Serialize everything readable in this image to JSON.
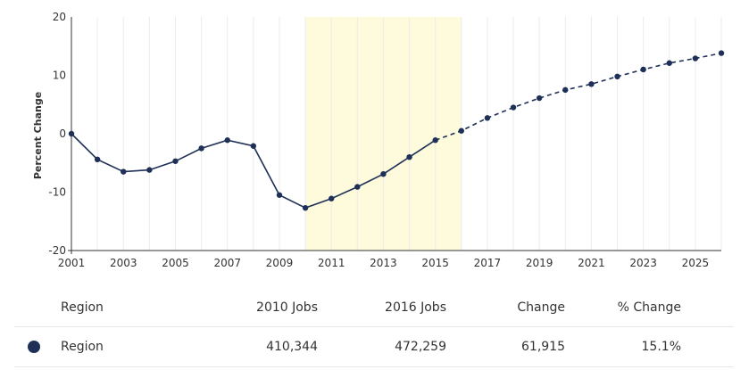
{
  "chart_data": {
    "type": "line",
    "ylabel": "Percent Change",
    "xlabel": "",
    "xlim": [
      2001,
      2026
    ],
    "ylim": [
      -20,
      20
    ],
    "x_ticks": [
      2001,
      2003,
      2005,
      2007,
      2009,
      2011,
      2013,
      2015,
      2017,
      2019,
      2021,
      2023,
      2025
    ],
    "x_tick_labels": [
      "2001",
      "2003",
      "2005",
      "2007",
      "2009",
      "2011",
      "2013",
      "2015",
      "2017",
      "2019",
      "2021",
      "2023",
      "2025"
    ],
    "y_ticks": [
      -20,
      -10,
      0,
      10,
      20
    ],
    "y_tick_labels": [
      "-20",
      "-10",
      "0",
      "10",
      "20"
    ],
    "grid": "vertical",
    "highlight_range": [
      2010,
      2016
    ],
    "highlight_color": "#fdfbdc",
    "series_color": "#1e3057",
    "series": [
      {
        "name": "Region",
        "x": [
          2001,
          2002,
          2003,
          2004,
          2005,
          2006,
          2007,
          2008,
          2009,
          2010,
          2011,
          2012,
          2013,
          2014,
          2015,
          2016,
          2017,
          2018,
          2019,
          2020,
          2021,
          2022,
          2023,
          2024,
          2025,
          2026
        ],
        "values": [
          0,
          -4.4,
          -6.5,
          -6.2,
          -4.7,
          -2.5,
          -1.1,
          -2.1,
          -10.5,
          -12.7,
          -11.1,
          -9.1,
          -6.9,
          -4.0,
          -1.1,
          0.5,
          2.7,
          4.5,
          6.1,
          7.5,
          8.5,
          9.8,
          11.0,
          12.1,
          12.9,
          13.8
        ],
        "solid_until": 2015,
        "dashed_from": 2015
      }
    ]
  },
  "table": {
    "headers": {
      "region": "Region",
      "jobs_2010": "2010 Jobs",
      "jobs_2016": "2016 Jobs",
      "change": "Change",
      "pct_change": "% Change"
    },
    "rows": [
      {
        "region": "Region",
        "jobs_2010": "410,344",
        "jobs_2016": "472,259",
        "change": "61,915",
        "pct_change": "15.1%",
        "marker_color": "#1e3057"
      }
    ]
  }
}
